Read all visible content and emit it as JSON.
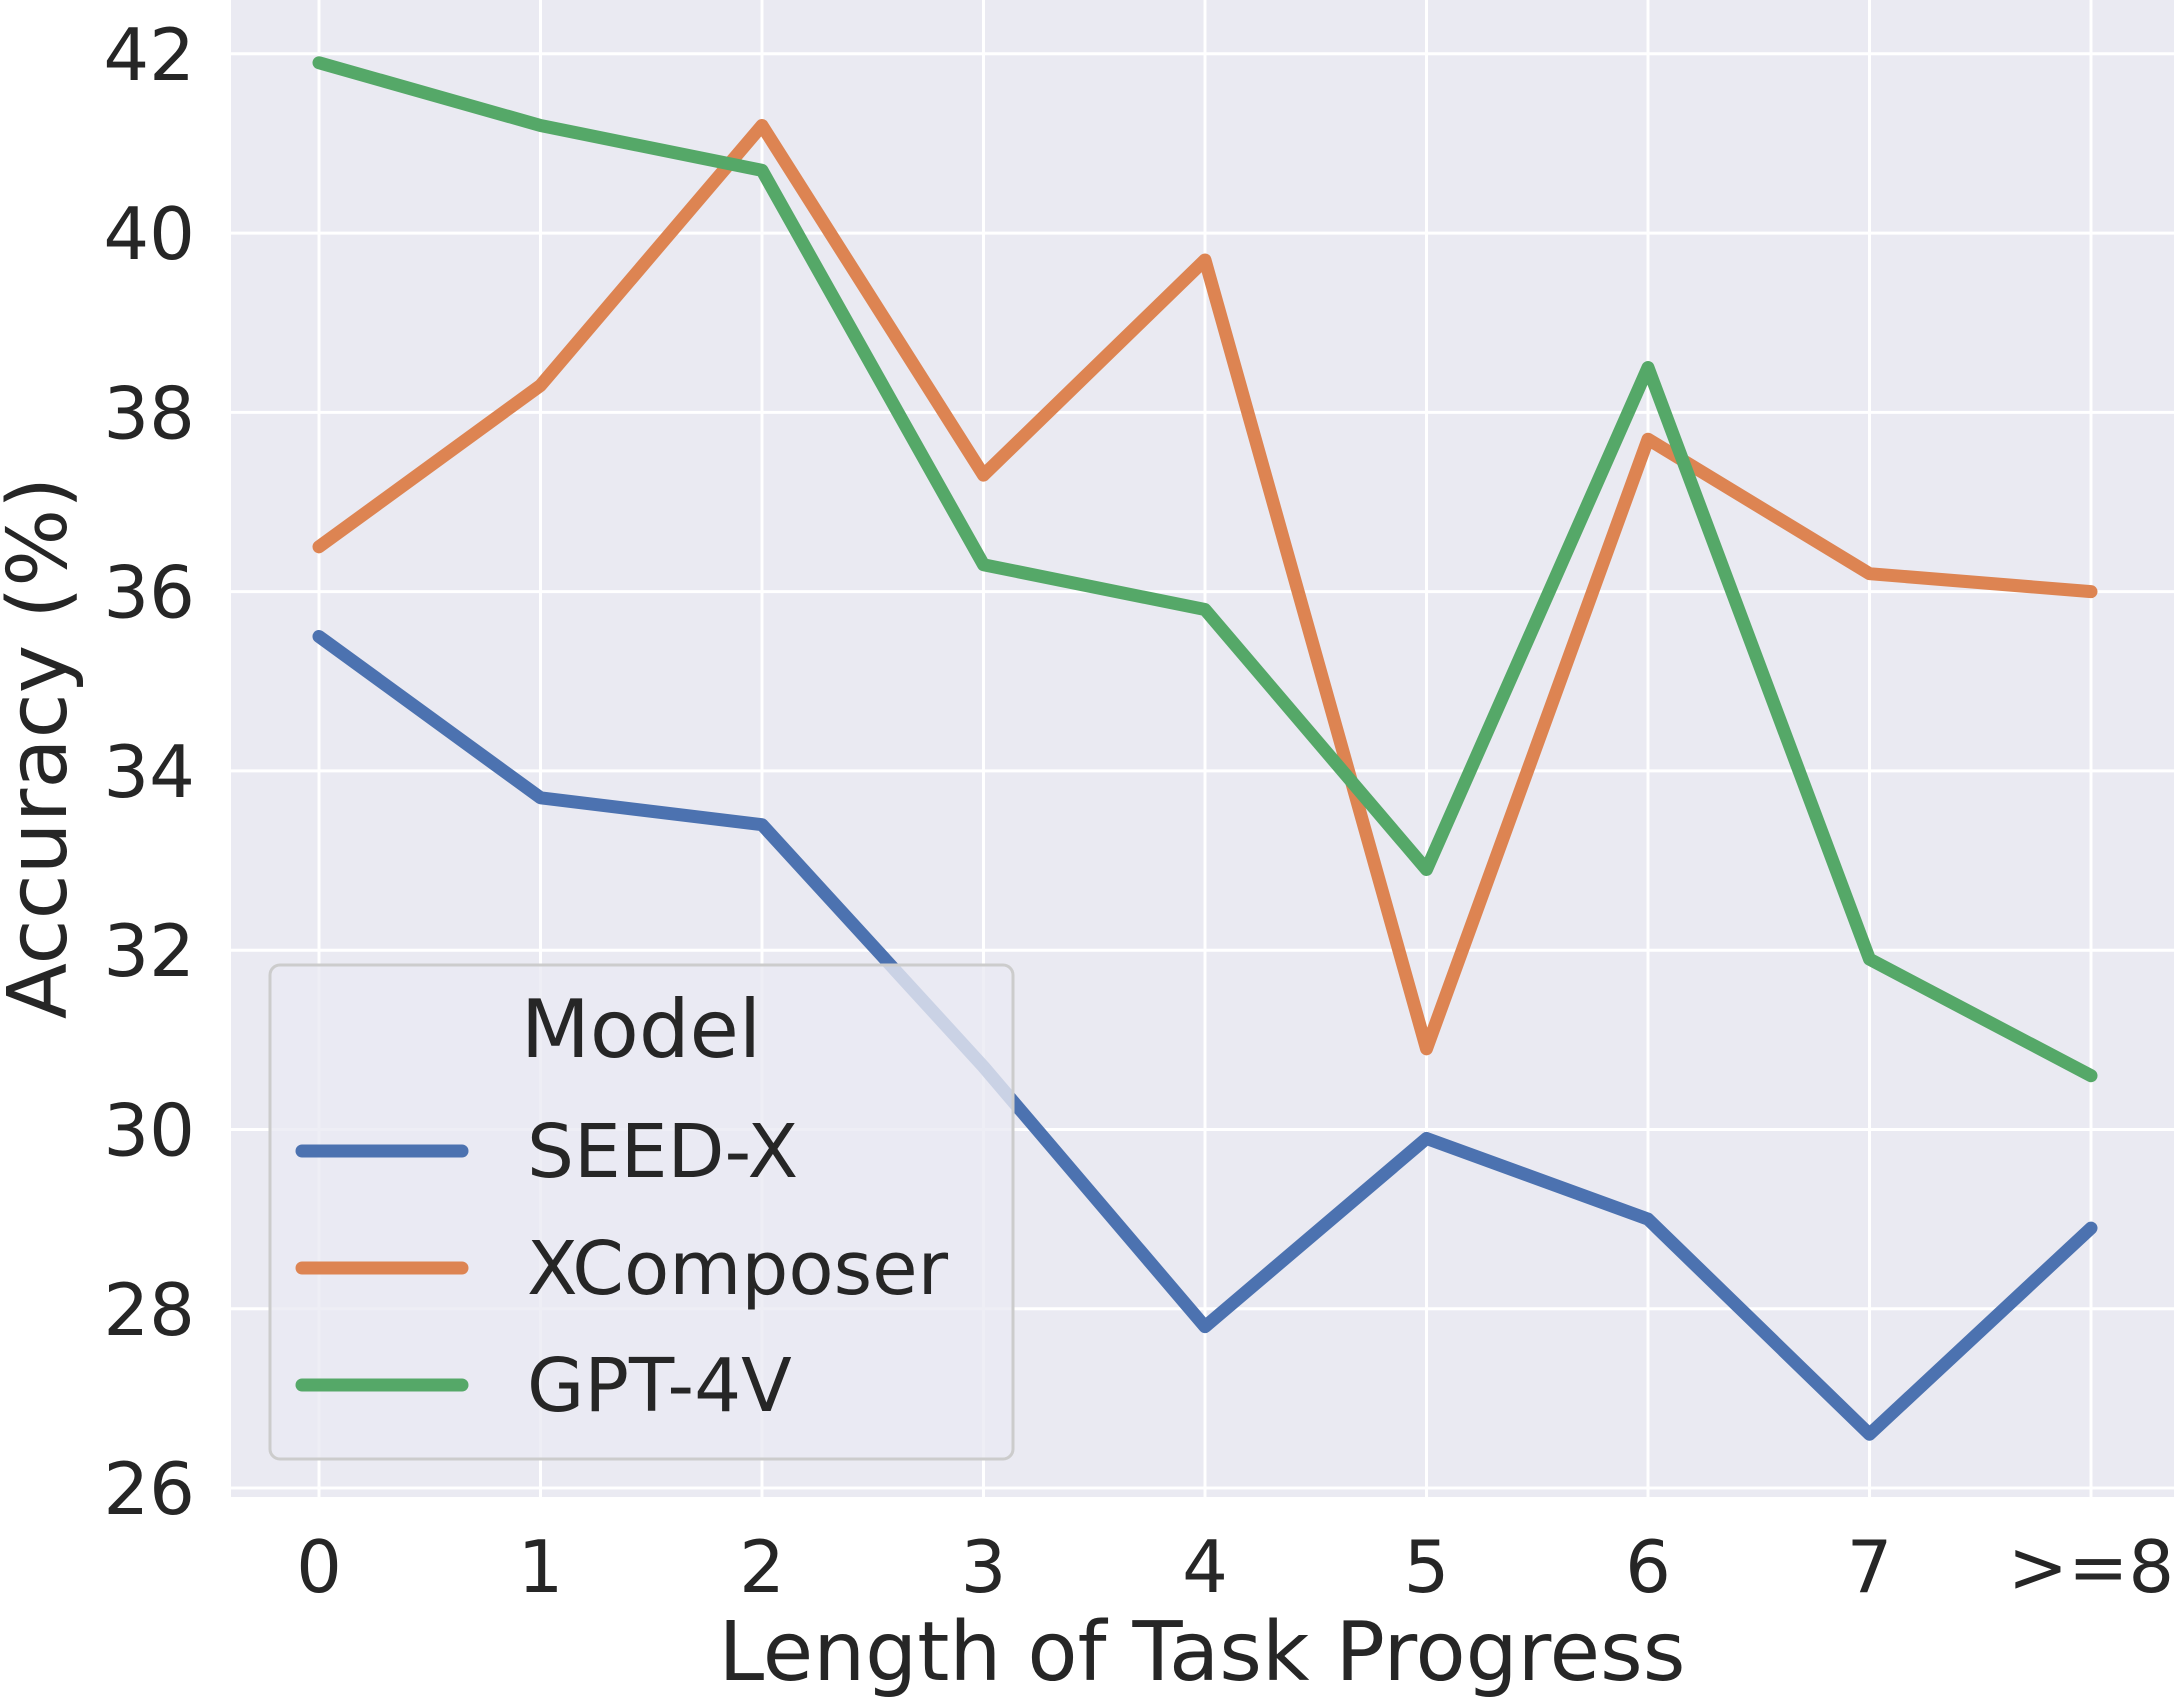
{
  "chart_data": {
    "type": "line",
    "title": "",
    "xlabel": "Length of Task Progress",
    "ylabel": "Accuracy (%)",
    "categories": [
      "0",
      "1",
      "2",
      "3",
      "4",
      "5",
      "6",
      "7",
      ">=8"
    ],
    "ylim": [
      25.9,
      42.6
    ],
    "yticks": [
      26,
      28,
      30,
      32,
      34,
      36,
      38,
      40,
      42
    ],
    "grid": true,
    "legend": {
      "title": "Model",
      "placement": "lower-left"
    },
    "series": [
      {
        "name": "SEED-X",
        "color": "#4c72b0",
        "values": [
          35.5,
          33.7,
          33.4,
          30.7,
          27.8,
          29.9,
          29.0,
          26.6,
          28.9
        ]
      },
      {
        "name": "XComposer",
        "color": "#dd8452",
        "values": [
          36.5,
          38.3,
          41.2,
          37.3,
          39.7,
          30.9,
          37.7,
          36.2,
          36.0
        ]
      },
      {
        "name": "GPT-4V",
        "color": "#55a868",
        "values": [
          41.9,
          41.2,
          40.7,
          36.3,
          35.8,
          32.9,
          38.5,
          31.9,
          30.6
        ]
      }
    ]
  }
}
